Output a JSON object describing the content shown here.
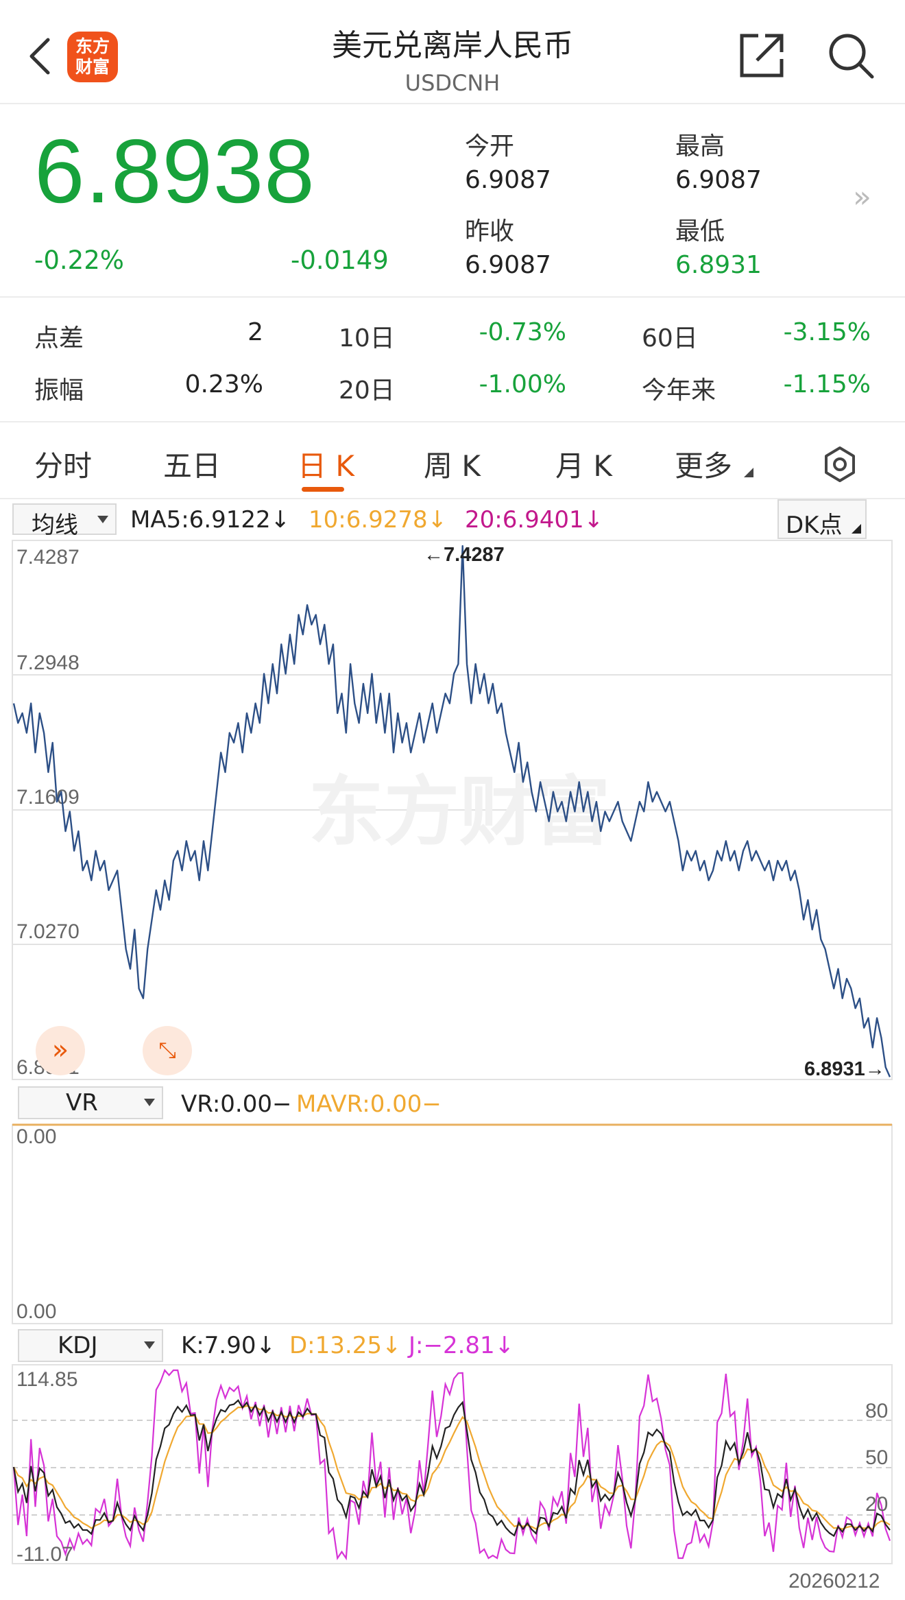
{
  "header": {
    "title": "美元兑离岸人民币",
    "subtitle": "USDCNH",
    "logo_line1": "东方",
    "logo_line2": "财富"
  },
  "quote": {
    "price": "6.8938",
    "change_pct": "-0.22%",
    "change_abs": "-0.0149",
    "open_label": "今开",
    "open_value": "6.9087",
    "high_label": "最高",
    "high_value": "6.9087",
    "prev_label": "昨收",
    "prev_value": "6.9087",
    "low_label": "最低",
    "low_value": "6.8931",
    "more_glyph": "»"
  },
  "ranges": {
    "spread_label": "点差",
    "spread_value": "2",
    "amp_label": "振幅",
    "amp_value": "0.23%",
    "d10_label": "10日",
    "d10_value": "-0.73%",
    "d20_label": "20日",
    "d20_value": "-1.00%",
    "d60_label": "60日",
    "d60_value": "-3.15%",
    "ytd_label": "今年来",
    "ytd_value": "-1.15%"
  },
  "tabs": {
    "t1": "分时",
    "t2": "五日",
    "t3": "日 K",
    "t4": "周 K",
    "t5": "月 K",
    "t6": "更多",
    "active": "t3"
  },
  "main_chart": {
    "indicator_select": "均线",
    "ma5": "MA5:6.9122↓",
    "ma10": "10:6.9278↓",
    "ma20": "20:6.9401↓",
    "dk_label": "DK点",
    "y_ticks": [
      "7.4287",
      "7.2948",
      "7.1609",
      "7.0270",
      "6.8931"
    ],
    "max_marker": "←7.4287",
    "min_marker": "6.8931→",
    "watermark": "东方财富"
  },
  "vr_chart": {
    "indicator_select": "VR",
    "vr": "VR:0.00−",
    "mavr": "MAVR:0.00−",
    "y_top": "0.00",
    "y_bottom": "0.00"
  },
  "kdj_chart": {
    "indicator_select": "KDJ",
    "k": "K:7.90↓",
    "d": "D:13.25↓",
    "j": "J:−2.81↓",
    "y_top": "114.85",
    "y_bottom": "-11.07",
    "ref_80": "80",
    "ref_50": "50",
    "ref_20": "20",
    "end_date": "20260212"
  },
  "colors": {
    "green": "#17a23b",
    "accent": "#e8590c",
    "line": "#2c4f86",
    "ma10": "#f0a830",
    "ma20": "#c2188c",
    "k": "#222222",
    "d": "#f0a830",
    "j": "#d633d6"
  },
  "chart_data": {
    "type": "line",
    "ylim": [
      6.8931,
      7.4287
    ],
    "y_max_label": 7.4287,
    "y_min_label": 6.8931,
    "price_series": [
      7.27,
      7.25,
      7.26,
      7.24,
      7.27,
      7.22,
      7.26,
      7.24,
      7.2,
      7.23,
      7.17,
      7.18,
      7.14,
      7.16,
      7.12,
      7.14,
      7.1,
      7.11,
      7.09,
      7.12,
      7.1,
      7.11,
      7.08,
      7.09,
      7.1,
      7.06,
      7.02,
      7.0,
      7.04,
      6.98,
      6.97,
      7.02,
      7.05,
      7.08,
      7.06,
      7.09,
      7.07,
      7.11,
      7.12,
      7.1,
      7.13,
      7.11,
      7.12,
      7.09,
      7.13,
      7.1,
      7.14,
      7.18,
      7.22,
      7.2,
      7.24,
      7.23,
      7.25,
      7.22,
      7.26,
      7.24,
      7.27,
      7.25,
      7.3,
      7.27,
      7.31,
      7.28,
      7.33,
      7.3,
      7.34,
      7.31,
      7.36,
      7.34,
      7.37,
      7.35,
      7.36,
      7.33,
      7.35,
      7.31,
      7.33,
      7.26,
      7.28,
      7.24,
      7.31,
      7.27,
      7.25,
      7.29,
      7.26,
      7.3,
      7.25,
      7.28,
      7.24,
      7.28,
      7.22,
      7.26,
      7.23,
      7.25,
      7.22,
      7.24,
      7.26,
      7.23,
      7.25,
      7.27,
      7.24,
      7.26,
      7.28,
      7.27,
      7.3,
      7.31,
      7.43,
      7.31,
      7.27,
      7.31,
      7.28,
      7.3,
      7.27,
      7.29,
      7.26,
      7.27,
      7.24,
      7.22,
      7.2,
      7.23,
      7.19,
      7.21,
      7.18,
      7.16,
      7.19,
      7.17,
      7.15,
      7.18,
      7.16,
      7.17,
      7.15,
      7.18,
      7.16,
      7.19,
      7.16,
      7.18,
      7.15,
      7.17,
      7.14,
      7.16,
      7.15,
      7.16,
      7.17,
      7.15,
      7.14,
      7.13,
      7.15,
      7.17,
      7.16,
      7.19,
      7.17,
      7.18,
      7.17,
      7.16,
      7.17,
      7.15,
      7.13,
      7.1,
      7.12,
      7.11,
      7.12,
      7.1,
      7.11,
      7.09,
      7.1,
      7.12,
      7.11,
      7.13,
      7.11,
      7.12,
      7.1,
      7.12,
      7.13,
      7.11,
      7.12,
      7.11,
      7.1,
      7.11,
      7.09,
      7.11,
      7.1,
      7.11,
      7.09,
      7.1,
      7.08,
      7.05,
      7.07,
      7.04,
      7.06,
      7.03,
      7.02,
      7.0,
      6.98,
      7.0,
      6.97,
      6.99,
      6.98,
      6.96,
      6.97,
      6.94,
      6.95,
      6.92,
      6.95,
      6.93,
      6.9,
      6.89
    ]
  }
}
